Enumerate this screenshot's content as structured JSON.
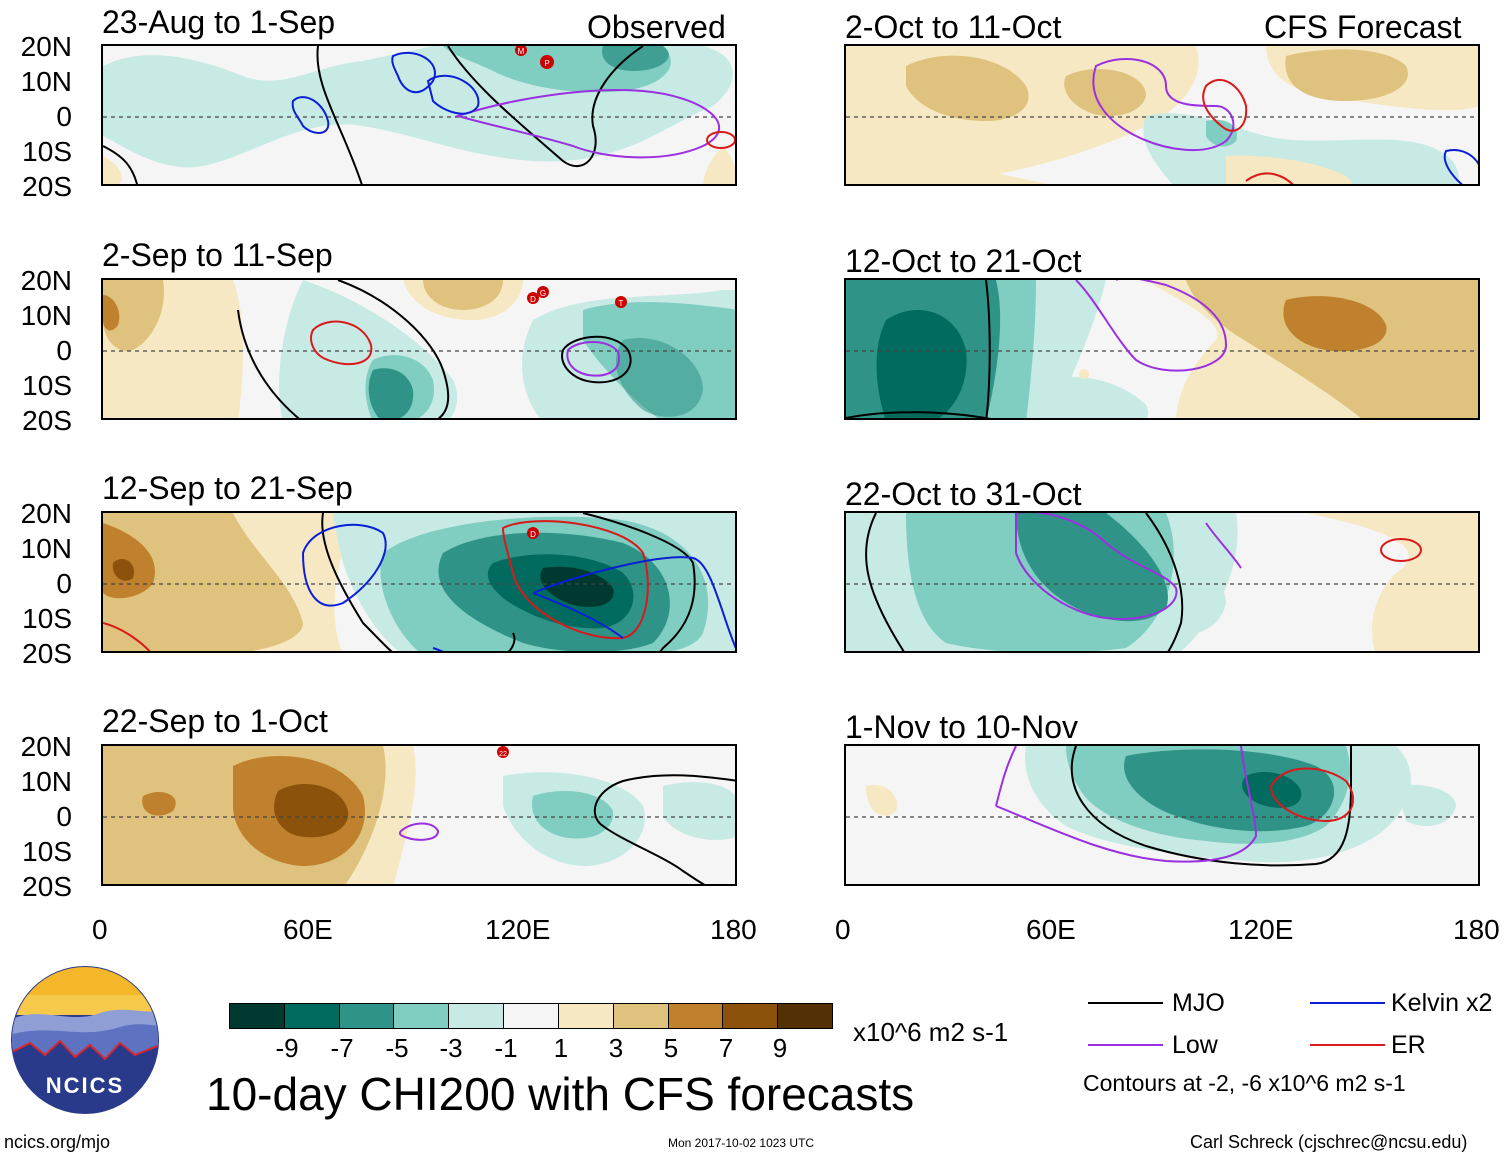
{
  "header": {
    "observed_label": "Observed",
    "forecast_label": "CFS Forecast"
  },
  "panels": {
    "p1": "23-Aug to 1-Sep",
    "p2": "2-Sep to 11-Sep",
    "p3": "12-Sep to 21-Sep",
    "p4": "22-Sep to 1-Oct",
    "p5": "2-Oct to 11-Oct",
    "p6": "12-Oct to 21-Oct",
    "p7": "22-Oct to 31-Oct",
    "p8": "1-Nov to 10-Nov"
  },
  "axes": {
    "lat_labels": [
      "20N",
      "10N",
      "0",
      "10S",
      "20S"
    ],
    "lon_labels": [
      "0",
      "60E",
      "120E",
      "180"
    ]
  },
  "storms": [
    "M",
    "P",
    "D",
    "G",
    "T",
    "D",
    "22"
  ],
  "colorbar": {
    "labels": [
      "-9",
      "-7",
      "-5",
      "-3",
      "-1",
      "1",
      "3",
      "5",
      "7",
      "9"
    ],
    "units": "x10^6 m2 s-1",
    "colors": [
      "#00392f",
      "#006b5e",
      "#2f9487",
      "#80cdc1",
      "#c7eae5",
      "#f5f5f5",
      "#f6e8c3",
      "#dfc27d",
      "#bf812d",
      "#8c510a",
      "#543005"
    ]
  },
  "title": "10-day CHI200 with CFS forecasts",
  "legend": {
    "mjo": "MJO",
    "kelvin": "Kelvin x2",
    "low": "Low",
    "er": "ER",
    "note": "Contours at -2, -6 x10^6 m2 s-1",
    "colors": {
      "mjo": "#000000",
      "kelvin": "#0b1fd6",
      "low": "#9b30e0",
      "er": "#d81a1a"
    }
  },
  "logo": {
    "text": "NCICS"
  },
  "footer": {
    "url": "ncics.org/mjo",
    "timestamp": "Mon 2017-10-02 1023 UTC",
    "author": "Carl Schreck (cjschrec@ncsu.edu)"
  }
}
